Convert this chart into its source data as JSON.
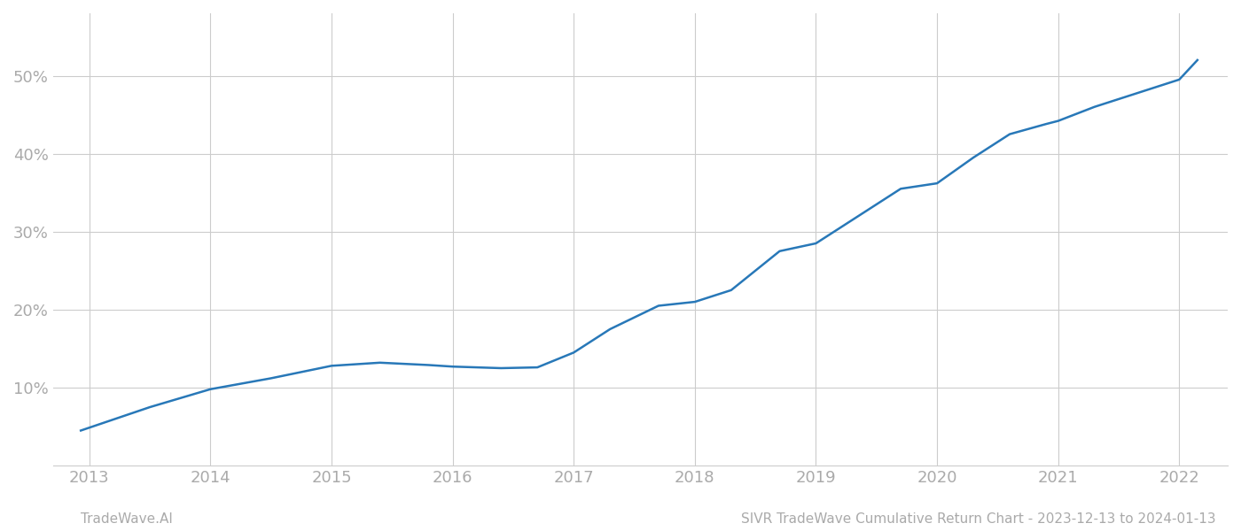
{
  "x_values": [
    2012.93,
    2013.5,
    2014.0,
    2014.5,
    2015.0,
    2015.4,
    2015.8,
    2016.0,
    2016.4,
    2016.7,
    2017.0,
    2017.3,
    2017.7,
    2018.0,
    2018.3,
    2018.7,
    2019.0,
    2019.3,
    2019.7,
    2020.0,
    2020.3,
    2020.6,
    2020.9,
    2021.0,
    2021.3,
    2021.6,
    2021.9,
    2022.0,
    2022.15
  ],
  "y_values": [
    4.5,
    7.5,
    9.8,
    11.2,
    12.8,
    13.2,
    12.9,
    12.7,
    12.5,
    12.6,
    14.5,
    17.5,
    20.5,
    21.0,
    22.5,
    27.5,
    28.5,
    31.5,
    35.5,
    36.2,
    39.5,
    42.5,
    43.8,
    44.2,
    46.0,
    47.5,
    49.0,
    49.5,
    52.0
  ],
  "line_color": "#2878b8",
  "line_width": 1.8,
  "x_ticks": [
    2013,
    2014,
    2015,
    2016,
    2017,
    2018,
    2019,
    2020,
    2021,
    2022
  ],
  "y_ticks": [
    10,
    20,
    30,
    40,
    50
  ],
  "y_tick_labels": [
    "10%",
    "20%",
    "30%",
    "40%",
    "50%"
  ],
  "xlim": [
    2012.7,
    2022.4
  ],
  "ylim": [
    0,
    58
  ],
  "grid_color": "#cccccc",
  "background_color": "#ffffff",
  "footer_left": "TradeWave.AI",
  "footer_right": "SIVR TradeWave Cumulative Return Chart - 2023-12-13 to 2024-01-13",
  "footer_color": "#aaaaaa",
  "footer_fontsize": 11,
  "tick_label_color": "#aaaaaa",
  "tick_fontsize": 13
}
